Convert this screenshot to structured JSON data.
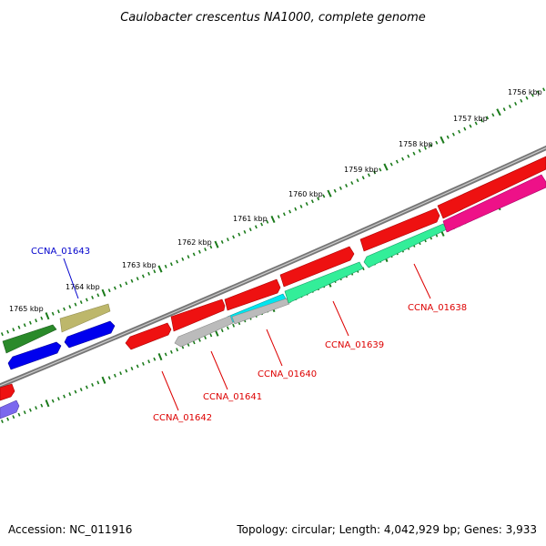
{
  "title": "Caulobacter crescentus NA1000, complete genome",
  "footer": {
    "accession": "Accession: NC_011916",
    "summary": "Topology: circular; Length: 4,042,929 bp; Genes: 3,933"
  },
  "kbp_labels": [
    "1756 kbp",
    "1757 kbp",
    "1758 kbp",
    "1759 kbp",
    "1760 kbp",
    "1761 kbp",
    "1762 kbp",
    "1763 kbp",
    "1764 kbp",
    "1765 kbp"
  ],
  "genes": [
    {
      "name": "CCNA_01643",
      "color": "#0000cc"
    },
    {
      "name": "CCNA_01642",
      "color": "#dd0000"
    },
    {
      "name": "CCNA_01641",
      "color": "#dd0000"
    },
    {
      "name": "CCNA_01640",
      "color": "#dd0000"
    },
    {
      "name": "CCNA_01639",
      "color": "#dd0000"
    },
    {
      "name": "CCNA_01638",
      "color": "#dd0000"
    }
  ],
  "colors": {
    "backbone": "#777777",
    "tick": "#1a7a1a",
    "red": "#ee1111",
    "green": "#2a8a2a",
    "olive": "#bdb76b",
    "blue": "#0000ee",
    "cyan": "#00e5ee",
    "gray": "#bbbbbb",
    "mint": "#33ee99",
    "pink": "#ee1188",
    "purple": "#7b68ee"
  }
}
